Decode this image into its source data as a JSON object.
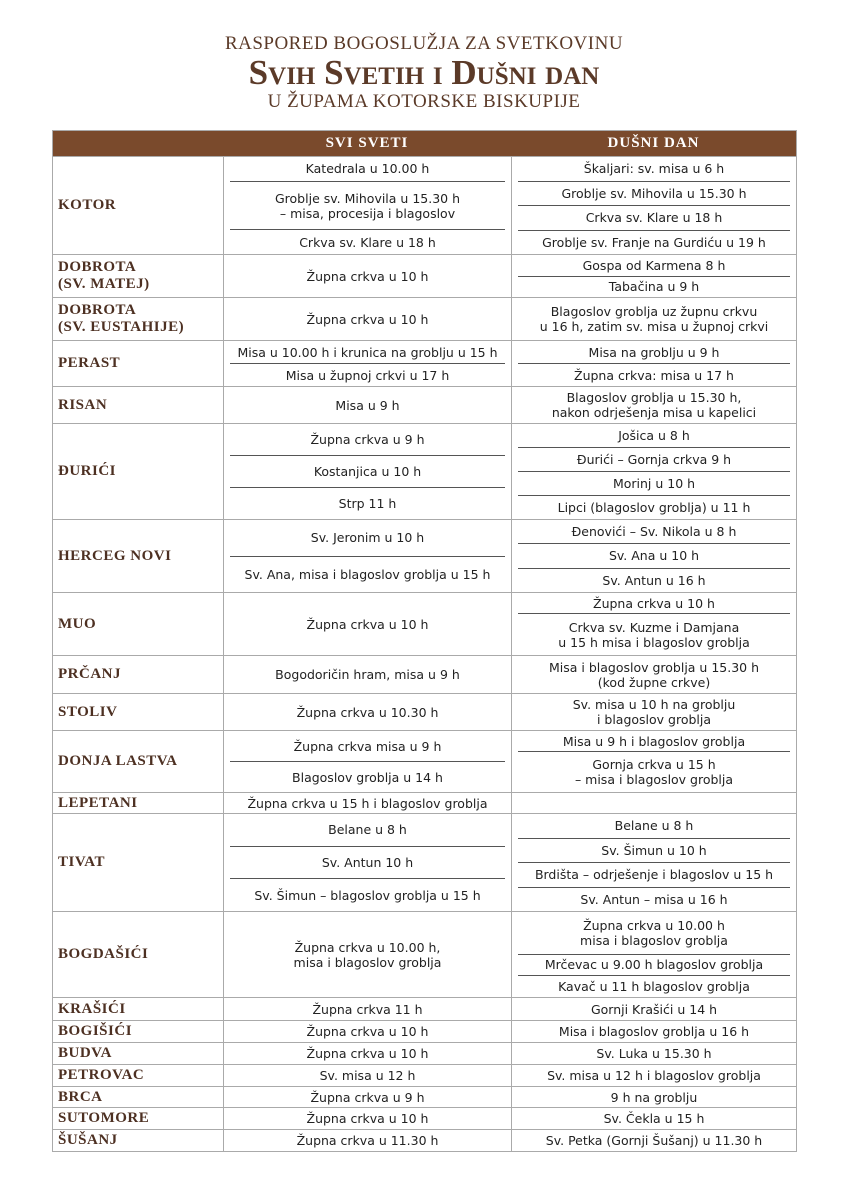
{
  "header": {
    "line1": "RASPORED BOGOSLUŽJA ZA SVETKOVINU",
    "title": "Svih Svetih i Dušni dan",
    "line3": "U ŽUPAMA KOTORSKE BISKUPIJE"
  },
  "table": {
    "columns": [
      "SVI SVETI",
      "DUŠNI DAN"
    ],
    "rows": [
      {
        "name": "KOTOR",
        "svi_sveti": [
          "Katedrala u 10.00 h",
          "Groblje sv. Mihovila u 15.30 h\n– misa, procesija i blagoslov",
          "Crkva sv. Klare u 18 h"
        ],
        "dusni_dan": [
          "Škaljari: sv. misa u 6 h",
          "Groblje sv. Mihovila u 15.30 h",
          "Crkva sv. Klare u 18 h",
          "Groblje sv. Franje na Gurdiću u 19 h"
        ]
      },
      {
        "name": "DOBROTA\n(SV. MATEJ)",
        "svi_sveti": [
          "Župna crkva u 10 h"
        ],
        "dusni_dan": [
          "Gospa od Karmena 8 h",
          "Tabačina u 9 h"
        ]
      },
      {
        "name": "DOBROTA\n(SV. EUSTAHIJE)",
        "svi_sveti": [
          "Župna crkva u 10 h"
        ],
        "dusni_dan": [
          "Blagoslov groblja uz župnu crkvu\nu 16 h, zatim sv. misa u župnoj crkvi"
        ]
      },
      {
        "name": "PERAST",
        "svi_sveti": [
          "Misa u 10.00 h i krunica na groblju u 15 h",
          "Misa u župnoj crkvi u 17 h"
        ],
        "dusni_dan": [
          "Misa na groblju u 9 h",
          "Župna crkva: misa u 17 h"
        ]
      },
      {
        "name": "RISAN",
        "svi_sveti": [
          "Misa u 9 h"
        ],
        "dusni_dan": [
          "Blagoslov groblja u 15.30 h,\nnakon odrješenja misa u kapelici"
        ]
      },
      {
        "name": "ĐURIĆI",
        "svi_sveti": [
          "Župna crkva u 9 h",
          "Kostanjica u 10 h",
          "Strp 11 h"
        ],
        "dusni_dan": [
          "Jošica u 8 h",
          "Đurići – Gornja crkva 9 h",
          "Morinj u 10 h",
          "Lipci (blagoslov groblja) u 11 h"
        ]
      },
      {
        "name": "HERCEG NOVI",
        "svi_sveti": [
          "Sv. Jeronim u 10 h",
          "Sv. Ana, misa i blagoslov groblja u 15 h"
        ],
        "dusni_dan": [
          "Đenovići – Sv. Nikola u 8 h",
          "Sv. Ana u 10 h",
          "Sv. Antun u 16 h"
        ]
      },
      {
        "name": "MUO",
        "svi_sveti": [
          "Župna crkva u 10 h"
        ],
        "dusni_dan": [
          "Župna crkva u 10 h",
          "Crkva sv. Kuzme i Damjana\nu 15 h misa i blagoslov groblja"
        ]
      },
      {
        "name": "PRČANJ",
        "svi_sveti": [
          "Bogodoričin hram, misa u 9 h"
        ],
        "dusni_dan": [
          "Misa i blagoslov groblja u 15.30 h\n(kod župne crkve)"
        ]
      },
      {
        "name": "STOLIV",
        "svi_sveti": [
          "Župna crkva u 10.30 h"
        ],
        "dusni_dan": [
          "Sv. misa u 10 h na groblju\ni blagoslov groblja"
        ]
      },
      {
        "name": "DONJA LASTVA",
        "svi_sveti": [
          "Župna crkva misa u 9 h",
          "Blagoslov groblja u 14 h"
        ],
        "dusni_dan": [
          "Misa u 9 h i blagoslov groblja",
          "Gornja crkva u 15 h\n– misa i blagoslov groblja"
        ]
      },
      {
        "name": "LEPETANI",
        "svi_sveti": [
          "Župna crkva u 15 h i blagoslov groblja"
        ],
        "dusni_dan": []
      },
      {
        "name": "TIVAT",
        "svi_sveti": [
          "Belane u 8 h",
          "Sv. Antun 10 h",
          "Sv. Šimun – blagoslov groblja u 15 h"
        ],
        "dusni_dan": [
          "Belane u 8 h",
          "Sv. Šimun u 10 h",
          "Brdišta – odrješenje i blagoslov u 15 h",
          "Sv. Antun – misa u 16 h"
        ]
      },
      {
        "name": "BOGDAŠIĆI",
        "svi_sveti": [
          "Župna crkva u 10.00 h,\nmisa i blagoslov groblja"
        ],
        "dusni_dan": [
          "Župna crkva u 10.00 h\nmisa i blagoslov groblja",
          "Mrčevac u 9.00 h blagoslov groblja",
          "Kavač u 11 h blagoslov groblja"
        ]
      },
      {
        "name": "KRAŠIĆI",
        "svi_sveti": [
          "Župna crkva 11 h"
        ],
        "dusni_dan": [
          "Gornji Krašići u 14 h"
        ]
      },
      {
        "name": "BOGIŠIĆI",
        "svi_sveti": [
          "Župna crkva u 10 h"
        ],
        "dusni_dan": [
          "Misa i blagoslov groblja u 16 h"
        ]
      },
      {
        "name": "BUDVA",
        "svi_sveti": [
          "Župna crkva u 10 h"
        ],
        "dusni_dan": [
          "Sv. Luka u 15.30 h"
        ]
      },
      {
        "name": "PETROVAC",
        "svi_sveti": [
          "Sv. misa u 12 h"
        ],
        "dusni_dan": [
          "Sv. misa u 12 h i blagoslov groblja"
        ]
      },
      {
        "name": "BRCA",
        "svi_sveti": [
          "Župna crkva u 9 h"
        ],
        "dusni_dan": [
          "9 h na groblju"
        ]
      },
      {
        "name": "SUTOMORE",
        "svi_sveti": [
          "Župna crkva u 10 h"
        ],
        "dusni_dan": [
          "Sv. Čekla u 15 h"
        ]
      },
      {
        "name": "ŠUŠANJ",
        "svi_sveti": [
          "Župna crkva u 11.30 h"
        ],
        "dusni_dan": [
          "Sv. Petka (Gornji Šušanj) u 11.30 h"
        ]
      }
    ]
  }
}
